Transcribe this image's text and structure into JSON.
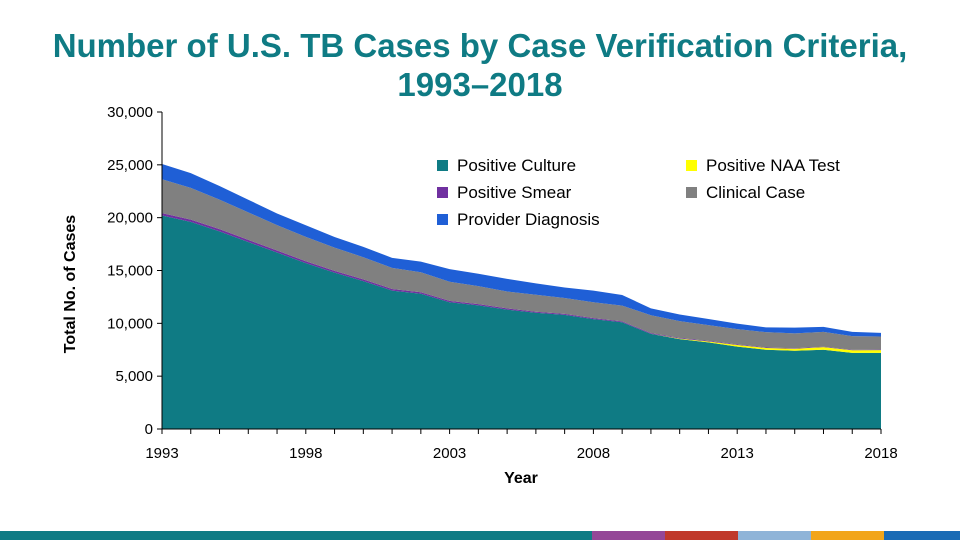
{
  "chart_data": {
    "type": "area",
    "stacked": true,
    "title_lines": [
      "Number of U.S. TB Cases by Case Verification Criteria,",
      "1993–2018"
    ],
    "xlabel": "Year",
    "ylabel": "Total No. of Cases",
    "x": [
      1993,
      1994,
      1995,
      1996,
      1997,
      1998,
      1999,
      2000,
      2001,
      2002,
      2003,
      2004,
      2005,
      2006,
      2007,
      2008,
      2009,
      2010,
      2011,
      2012,
      2013,
      2014,
      2015,
      2016,
      2017,
      2018
    ],
    "xlim": [
      1993,
      2018
    ],
    "x_tick_labels": [
      "1993",
      "1998",
      "2003",
      "2008",
      "2013",
      "2018"
    ],
    "ylim": [
      0,
      30000
    ],
    "y_tick_labels": [
      "0",
      "5,000",
      "10,000",
      "15,000",
      "20,000",
      "25,000",
      "30,000"
    ],
    "grid": false,
    "legend_position": "top-right, inside plot",
    "series": [
      {
        "name": "Positive Culture",
        "color": "#0f7b84",
        "values": [
          20200,
          19600,
          18700,
          17700,
          16700,
          15700,
          14800,
          14000,
          13100,
          12800,
          12000,
          11700,
          11300,
          11000,
          10800,
          10400,
          10100,
          9000,
          8500,
          8200,
          7800,
          7500,
          7400,
          7500,
          7200,
          7200
        ]
      },
      {
        "name": "Positive NAA Test",
        "color": "#ffff00",
        "values": [
          0,
          0,
          0,
          0,
          0,
          0,
          0,
          0,
          0,
          0,
          0,
          0,
          0,
          0,
          0,
          0,
          0,
          0,
          50,
          80,
          150,
          170,
          200,
          250,
          250,
          270
        ]
      },
      {
        "name": "Positive Smear",
        "color": "#7030a0",
        "values": [
          230,
          220,
          210,
          200,
          190,
          180,
          170,
          160,
          150,
          140,
          130,
          120,
          110,
          100,
          95,
          90,
          80,
          70,
          60,
          55,
          50,
          45,
          45,
          40,
          40,
          40
        ]
      },
      {
        "name": "Clinical Case",
        "color": "#808080",
        "values": [
          3200,
          3000,
          2800,
          2600,
          2400,
          2300,
          2200,
          2100,
          2000,
          1900,
          1800,
          1700,
          1600,
          1600,
          1500,
          1500,
          1500,
          1700,
          1600,
          1500,
          1450,
          1450,
          1400,
          1400,
          1300,
          1250
        ]
      },
      {
        "name": "Provider Diagnosis",
        "color": "#1f5fd6",
        "values": [
          1450,
          1400,
          1290,
          1200,
          1100,
          1100,
          1000,
          980,
          950,
          1000,
          1200,
          1170,
          1200,
          1080,
          1000,
          1100,
          1000,
          650,
          630,
          580,
          520,
          450,
          550,
          480,
          400,
          340
        ]
      }
    ],
    "legend_order": [
      "Positive Culture",
      "Positive NAA Test",
      "Positive Smear",
      "Clinical Case",
      "Provider Diagnosis"
    ]
  },
  "footer_colors": [
    "#0f7b84",
    "#0f7b84",
    "#0f7b84",
    "#0f7b84",
    "#0f7b84",
    "#0f7b84",
    "#0f7b84",
    "#0f7b84",
    "#944797",
    "#c0392b",
    "#8fb4d8",
    "#f2a51a",
    "#1a6bb5"
  ]
}
